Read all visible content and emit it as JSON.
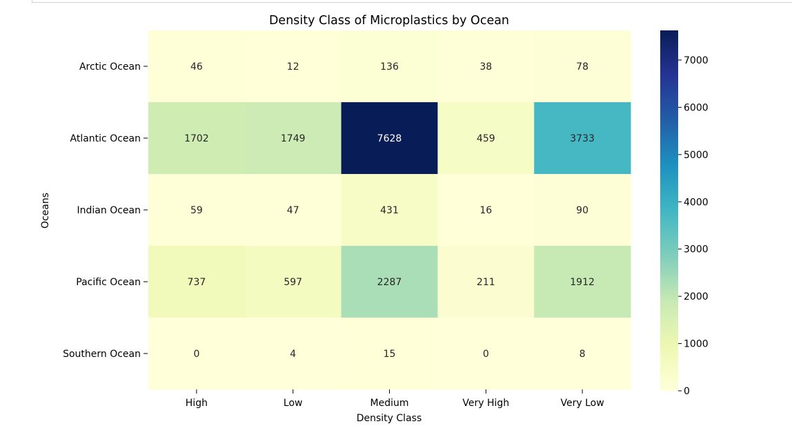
{
  "chart_data": {
    "type": "heatmap",
    "title": "Density Class of Microplastics by Ocean",
    "xlabel": "Density Class",
    "ylabel": "Oceans",
    "columns": [
      "High",
      "Low",
      "Medium",
      "Very High",
      "Very Low"
    ],
    "rows": [
      "Arctic Ocean",
      "Atlantic Ocean",
      "Indian Ocean",
      "Pacific Ocean",
      "Southern Ocean"
    ],
    "values": [
      [
        46,
        12,
        136,
        38,
        78
      ],
      [
        1702,
        1749,
        7628,
        459,
        3733
      ],
      [
        59,
        47,
        431,
        16,
        90
      ],
      [
        737,
        597,
        2287,
        211,
        1912
      ],
      [
        0,
        4,
        15,
        0,
        8
      ]
    ],
    "colormap": "YlGnBu",
    "vmin": 0,
    "vmax": 7628,
    "colorbar_ticks": [
      0,
      1000,
      2000,
      3000,
      4000,
      5000,
      6000,
      7000
    ]
  }
}
